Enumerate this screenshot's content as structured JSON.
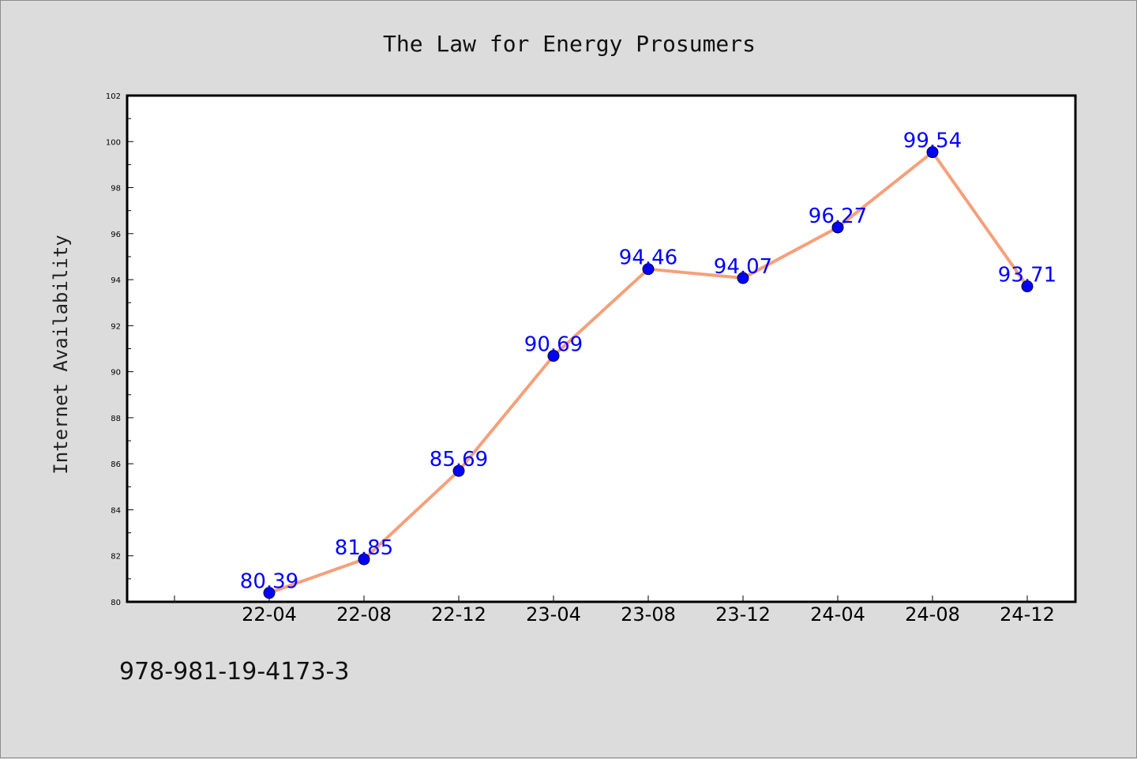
{
  "chart_data": {
    "type": "line",
    "title": "The Law for Energy Prosumers",
    "xlabel": "",
    "ylabel": "Internet Availability",
    "categories": [
      "22-04",
      "22-08",
      "22-12",
      "23-04",
      "23-08",
      "23-12",
      "24-04",
      "24-08",
      "24-12"
    ],
    "series": [
      {
        "values": [
          80.39,
          81.85,
          85.69,
          90.69,
          94.46,
          94.07,
          96.27,
          99.54,
          93.71
        ],
        "labels": [
          "80.39",
          "81.85",
          "85.69",
          "90.69",
          "94.46",
          "94.07",
          "96.27",
          "99.54",
          "93.71"
        ],
        "line_color": "#f5a07a",
        "marker_color": "#0000ff"
      }
    ],
    "ylim": [
      80,
      102
    ],
    "yticks": [
      "80",
      "82",
      "84",
      "86",
      "88",
      "90",
      "92",
      "94",
      "96",
      "98",
      "100",
      "102"
    ],
    "grid": false,
    "legend": "none"
  },
  "footer": {
    "isbn": "978-981-19-4173-3"
  }
}
